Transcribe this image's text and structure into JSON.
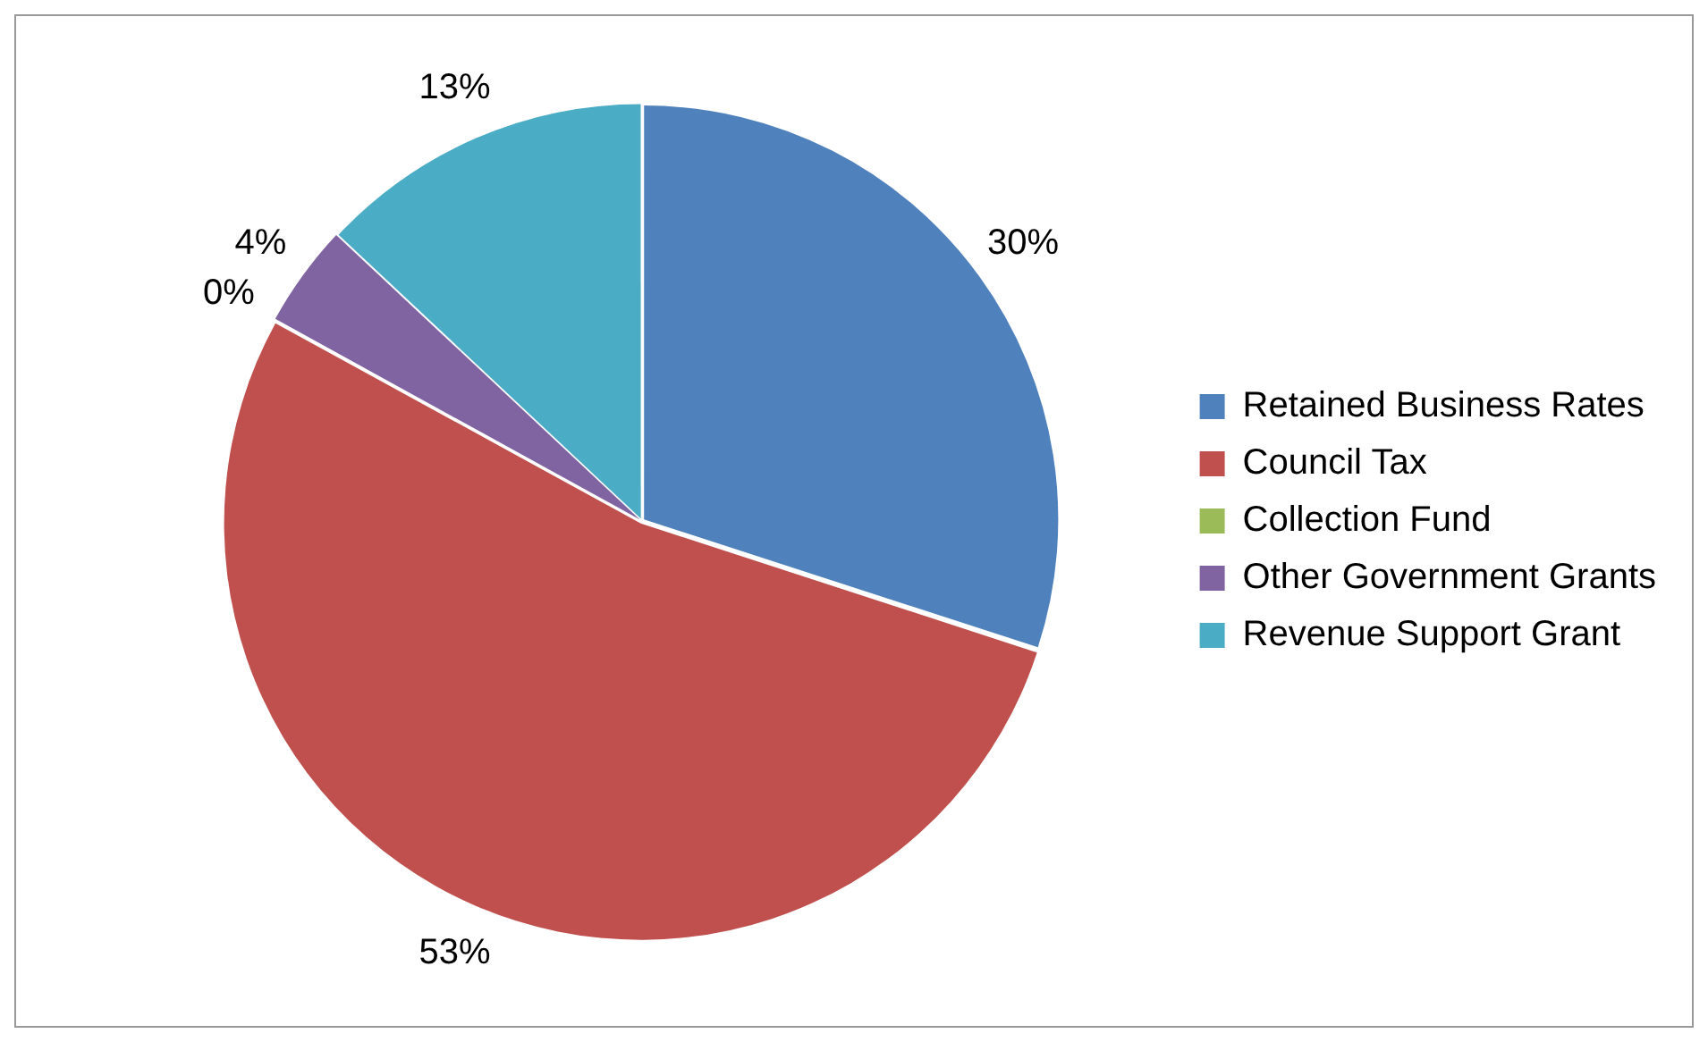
{
  "chart_data": {
    "type": "pie",
    "categories": [
      "Retained Business Rates",
      "Council Tax",
      "Collection Fund",
      "Other Government Grants",
      "Revenue Support Grant"
    ],
    "values": [
      30,
      53,
      0,
      4,
      13
    ],
    "colors": [
      "#4f81bd",
      "#c0504d",
      "#9bbb59",
      "#8064a2",
      "#4bacc6"
    ],
    "value_labels": [
      "30%",
      "53%",
      "0%",
      "4%",
      "13%"
    ],
    "legend": "right"
  }
}
